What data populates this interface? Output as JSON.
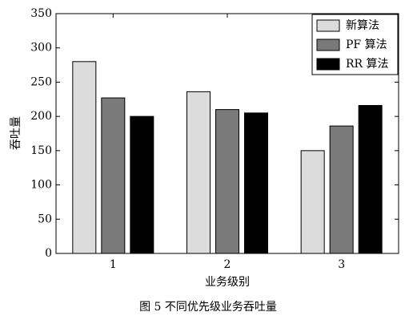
{
  "chart_data": {
    "type": "bar",
    "ylabel": "吞吐量",
    "xlabel": "业务级别",
    "caption": "图 5 不同优先级业务吞吐量",
    "categories": [
      "1",
      "2",
      "3"
    ],
    "series": [
      {
        "name": "新算法",
        "color": "#dcdcdc",
        "values": [
          280,
          236,
          150
        ]
      },
      {
        "name": "PF 算法",
        "color": "#7a7a7a",
        "values": [
          227,
          210,
          186
        ]
      },
      {
        "name": "RR 算法",
        "color": "#000000",
        "values": [
          200,
          205,
          216
        ]
      }
    ],
    "ylim": [
      0,
      350
    ],
    "yticks": [
      0,
      50,
      100,
      150,
      200,
      250,
      300,
      350
    ],
    "legend": "upper right"
  }
}
